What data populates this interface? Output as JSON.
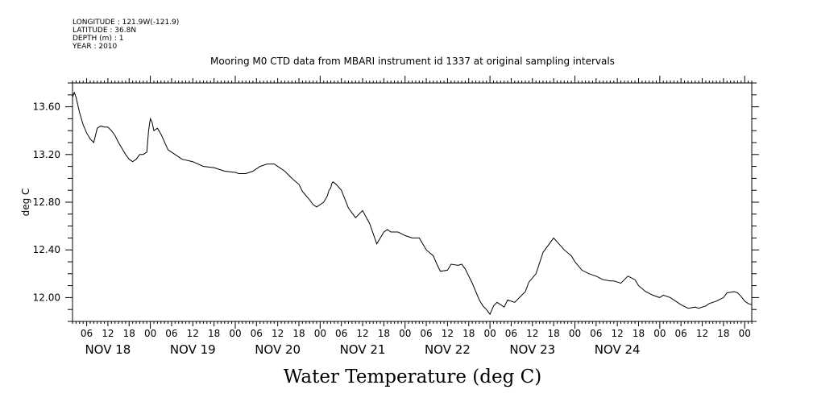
{
  "meta": {
    "longitude": "LONGITUDE : 121.9W(-121.9)",
    "latitude": "LATITUDE : 36.8N",
    "depth": "DEPTH (m) : 1",
    "year": "YEAR : 2010"
  },
  "chart_data": {
    "type": "line",
    "title": "Mooring M0 CTD data from MBARI instrument id 1337 at original sampling intervals",
    "xlabel": "Water Temperature (deg C)",
    "ylabel": "deg C",
    "xlim": [
      "2010-11-17T02:00",
      "2010-11-25T02:00"
    ],
    "ylim": [
      11.8,
      13.8
    ],
    "yticks": [
      12.0,
      12.4,
      12.8,
      13.2,
      13.6
    ],
    "ytick_labels": [
      "12.00",
      "12.40",
      "12.80",
      "13.20",
      "13.60"
    ],
    "hour_labels": [
      {
        "t": "2010-11-17T06:00",
        "label": "06"
      },
      {
        "t": "2010-11-17T12:00",
        "label": "12"
      },
      {
        "t": "2010-11-17T18:00",
        "label": "18"
      },
      {
        "t": "2010-11-18T00:00",
        "label": "00"
      },
      {
        "t": "2010-11-18T06:00",
        "label": "06"
      },
      {
        "t": "2010-11-18T12:00",
        "label": "12"
      },
      {
        "t": "2010-11-18T18:00",
        "label": "18"
      },
      {
        "t": "2010-11-19T00:00",
        "label": "00"
      },
      {
        "t": "2010-11-19T06:00",
        "label": "06"
      },
      {
        "t": "2010-11-19T12:00",
        "label": "12"
      },
      {
        "t": "2010-11-19T18:00",
        "label": "18"
      },
      {
        "t": "2010-11-20T00:00",
        "label": "00"
      },
      {
        "t": "2010-11-20T06:00",
        "label": "06"
      },
      {
        "t": "2010-11-20T12:00",
        "label": "12"
      },
      {
        "t": "2010-11-20T18:00",
        "label": "18"
      },
      {
        "t": "2010-11-21T00:00",
        "label": "00"
      },
      {
        "t": "2010-11-21T06:00",
        "label": "06"
      },
      {
        "t": "2010-11-21T12:00",
        "label": "12"
      },
      {
        "t": "2010-11-21T18:00",
        "label": "18"
      },
      {
        "t": "2010-11-22T00:00",
        "label": "00"
      },
      {
        "t": "2010-11-22T06:00",
        "label": "06"
      },
      {
        "t": "2010-11-22T12:00",
        "label": "12"
      },
      {
        "t": "2010-11-22T18:00",
        "label": "18"
      },
      {
        "t": "2010-11-23T00:00",
        "label": "00"
      },
      {
        "t": "2010-11-23T06:00",
        "label": "06"
      },
      {
        "t": "2010-11-23T12:00",
        "label": "12"
      },
      {
        "t": "2010-11-23T18:00",
        "label": "18"
      },
      {
        "t": "2010-11-24T00:00",
        "label": "00"
      },
      {
        "t": "2010-11-24T06:00",
        "label": "06"
      },
      {
        "t": "2010-11-24T12:00",
        "label": "12"
      },
      {
        "t": "2010-11-24T18:00",
        "label": "18"
      },
      {
        "t": "2010-11-25T00:00",
        "label": "00"
      }
    ],
    "day_labels": [
      {
        "t": "2010-11-17T12:00",
        "label": "NOV 18"
      },
      {
        "t": "2010-11-18T12:00",
        "label": "NOV 19"
      },
      {
        "t": "2010-11-19T12:00",
        "label": "NOV 20"
      },
      {
        "t": "2010-11-20T12:00",
        "label": "NOV 21"
      },
      {
        "t": "2010-11-21T12:00",
        "label": "NOV 22"
      },
      {
        "t": "2010-11-22T12:00",
        "label": "NOV 23"
      },
      {
        "t": "2010-11-23T12:00",
        "label": "NOV 24"
      }
    ],
    "series": [
      {
        "x": [
          "2010-11-17T02:00",
          "2010-11-17T02:30",
          "2010-11-17T03:00",
          "2010-11-17T04:00",
          "2010-11-17T05:00",
          "2010-11-17T06:00",
          "2010-11-17T07:00",
          "2010-11-17T08:00",
          "2010-11-17T09:00",
          "2010-11-17T10:00",
          "2010-11-17T11:00",
          "2010-11-17T12:00",
          "2010-11-17T13:00",
          "2010-11-17T14:00",
          "2010-11-17T15:00",
          "2010-11-17T16:00",
          "2010-11-17T17:00",
          "2010-11-17T18:00",
          "2010-11-17T19:00",
          "2010-11-17T20:00",
          "2010-11-17T21:00",
          "2010-11-17T22:00",
          "2010-11-17T23:00",
          "2010-11-17T23:30",
          "2010-11-18T00:00",
          "2010-11-18T00:30",
          "2010-11-18T01:00",
          "2010-11-18T02:00",
          "2010-11-18T03:00",
          "2010-11-18T05:00",
          "2010-11-18T07:00",
          "2010-11-18T09:00",
          "2010-11-18T12:00",
          "2010-11-18T15:00",
          "2010-11-18T18:00",
          "2010-11-18T21:00",
          "2010-11-19T00:00",
          "2010-11-19T01:00",
          "2010-11-19T03:00",
          "2010-11-19T05:00",
          "2010-11-19T07:00",
          "2010-11-19T09:00",
          "2010-11-19T11:00",
          "2010-11-19T12:00",
          "2010-11-19T14:00",
          "2010-11-19T16:00",
          "2010-11-19T18:00",
          "2010-11-19T19:00",
          "2010-11-19T21:00",
          "2010-11-19T22:00",
          "2010-11-19T23:00",
          "2010-11-20T00:00",
          "2010-11-20T01:00",
          "2010-11-20T02:00",
          "2010-11-20T02:30",
          "2010-11-20T03:00",
          "2010-11-20T03:20",
          "2010-11-20T03:40",
          "2010-11-20T04:30",
          "2010-11-20T06:00",
          "2010-11-20T08:00",
          "2010-11-20T10:00",
          "2010-11-20T12:00",
          "2010-11-20T14:00",
          "2010-11-20T16:00",
          "2010-11-20T18:00",
          "2010-11-20T19:00",
          "2010-11-20T20:00",
          "2010-11-20T22:00",
          "2010-11-21T00:00",
          "2010-11-21T02:00",
          "2010-11-21T04:00",
          "2010-11-21T06:00",
          "2010-11-21T08:00",
          "2010-11-21T09:00",
          "2010-11-21T10:00",
          "2010-11-21T12:00",
          "2010-11-21T13:00",
          "2010-11-21T15:00",
          "2010-11-21T16:00",
          "2010-11-21T17:00",
          "2010-11-21T18:00",
          "2010-11-21T19:00",
          "2010-11-21T20:00",
          "2010-11-21T21:00",
          "2010-11-21T22:00",
          "2010-11-21T23:00",
          "2010-11-22T00:00",
          "2010-11-22T01:00",
          "2010-11-22T02:00",
          "2010-11-22T04:00",
          "2010-11-22T05:00",
          "2010-11-22T07:00",
          "2010-11-22T08:00",
          "2010-11-22T10:00",
          "2010-11-22T11:00",
          "2010-11-22T13:00",
          "2010-11-22T15:00",
          "2010-11-22T18:00",
          "2010-11-22T21:00",
          "2010-11-22T23:00",
          "2010-11-23T00:00",
          "2010-11-23T02:00",
          "2010-11-23T04:00",
          "2010-11-23T06:00",
          "2010-11-23T08:00",
          "2010-11-23T10:00",
          "2010-11-23T11:00",
          "2010-11-23T13:00",
          "2010-11-23T15:00",
          "2010-11-23T17:00",
          "2010-11-23T18:00",
          "2010-11-23T20:00",
          "2010-11-23T22:00",
          "2010-11-24T00:00",
          "2010-11-24T01:00",
          "2010-11-24T03:00",
          "2010-11-24T04:00",
          "2010-11-24T06:00",
          "2010-11-24T08:00",
          "2010-11-24T10:00",
          "2010-11-24T11:00",
          "2010-11-24T13:00",
          "2010-11-24T14:00",
          "2010-11-24T16:00",
          "2010-11-24T18:00",
          "2010-11-24T19:00",
          "2010-11-24T21:00",
          "2010-11-24T22:00",
          "2010-11-24T23:00",
          "2010-11-25T00:00",
          "2010-11-25T01:00",
          "2010-11-25T02:00"
        ],
        "y": [
          13.68,
          13.72,
          13.68,
          13.55,
          13.45,
          13.38,
          13.33,
          13.3,
          13.42,
          13.44,
          13.43,
          13.43,
          13.4,
          13.36,
          13.3,
          13.25,
          13.2,
          13.16,
          13.14,
          13.16,
          13.2,
          13.2,
          13.22,
          13.4,
          13.5,
          13.47,
          13.4,
          13.42,
          13.37,
          13.24,
          13.2,
          13.16,
          13.14,
          13.1,
          13.09,
          13.06,
          13.05,
          13.04,
          13.04,
          13.06,
          13.1,
          13.12,
          13.12,
          13.1,
          13.06,
          13.0,
          12.95,
          12.89,
          12.82,
          12.78,
          12.76,
          12.78,
          12.8,
          12.85,
          12.9,
          12.92,
          12.96,
          12.97,
          12.95,
          12.9,
          12.75,
          12.67,
          12.73,
          12.62,
          12.45,
          12.55,
          12.57,
          12.55,
          12.55,
          12.52,
          12.5,
          12.5,
          12.4,
          12.35,
          12.28,
          12.22,
          12.23,
          12.28,
          12.27,
          12.28,
          12.24,
          12.18,
          12.12,
          12.05,
          11.98,
          11.93,
          11.9,
          11.86,
          11.93,
          11.96,
          11.92,
          11.98,
          11.96,
          11.99,
          12.05,
          12.13,
          12.2,
          12.38,
          12.5,
          12.4,
          12.35,
          12.3,
          12.23,
          12.2,
          12.18,
          12.15,
          12.14,
          12.14,
          12.12,
          12.18,
          12.15,
          12.1,
          12.05,
          12.02,
          12.0,
          12.02,
          12.0,
          11.98,
          11.94,
          11.91,
          11.92,
          11.91,
          11.93,
          11.95,
          11.97,
          12.0,
          12.04,
          12.05,
          12.04,
          12.01,
          11.97,
          11.95,
          11.94
        ]
      }
    ]
  }
}
